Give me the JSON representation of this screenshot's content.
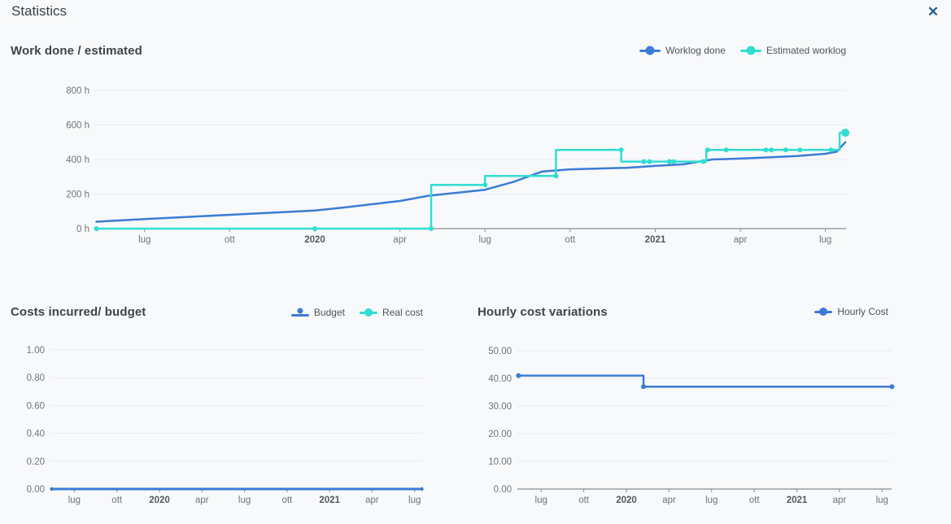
{
  "dialog": {
    "title": "Statistics",
    "close_icon": "✕"
  },
  "colors": {
    "blue": "#3a7cd6",
    "cyan": "#31ddd2",
    "grid": "#e7ebf2",
    "axis": "#888d94",
    "tick_label": "#6f747b",
    "tick_label_bold": "#54585e",
    "close": "#275e92"
  },
  "chart_data": [
    {
      "id": "work-done-estimated",
      "type": "line",
      "title": "Work done / estimated",
      "legend": [
        {
          "label": "Worklog done",
          "color": "blue",
          "marker": "dot-line"
        },
        {
          "label": "Estimated worklog",
          "color": "cyan",
          "marker": "dot-line"
        }
      ],
      "x_axis": {
        "note_unit": "months (0 = Jan 2019)",
        "ticks": [
          {
            "m": 6,
            "label": "lug"
          },
          {
            "m": 9,
            "label": "ott"
          },
          {
            "m": 12,
            "label": "2020",
            "bold": true
          },
          {
            "m": 15,
            "label": "apr"
          },
          {
            "m": 18,
            "label": "lug"
          },
          {
            "m": 21,
            "label": "ott"
          },
          {
            "m": 24,
            "label": "2021",
            "bold": true
          },
          {
            "m": 27,
            "label": "apr"
          },
          {
            "m": 30,
            "label": "lug"
          }
        ]
      },
      "y_axis": {
        "unit": "h",
        "range": [
          0,
          800
        ],
        "ticks": [
          {
            "v": 0,
            "label": "0 h"
          },
          {
            "v": 200,
            "label": "200 h"
          },
          {
            "v": 400,
            "label": "400 h"
          },
          {
            "v": 600,
            "label": "600 h"
          },
          {
            "v": 800,
            "label": "800 h"
          }
        ]
      },
      "series": [
        {
          "name": "Worklog done",
          "color": "blue",
          "width": 2.5,
          "points": [
            [
              4.3,
              40
            ],
            [
              6,
              55
            ],
            [
              9,
              80
            ],
            [
              12,
              105
            ],
            [
              13,
              122
            ],
            [
              15,
              160
            ],
            [
              16,
              190
            ],
            [
              18,
              225
            ],
            [
              19,
              270
            ],
            [
              20,
              330
            ],
            [
              21,
              343
            ],
            [
              23,
              352
            ],
            [
              24,
              363
            ],
            [
              25,
              372
            ],
            [
              26,
              400
            ],
            [
              27,
              405
            ],
            [
              28,
              412
            ],
            [
              29,
              420
            ],
            [
              30,
              433
            ],
            [
              30.4,
              445
            ],
            [
              30.7,
              500
            ]
          ],
          "markers": []
        },
        {
          "name": "Estimated worklog",
          "color": "cyan",
          "width": 2.5,
          "points": [
            [
              4.3,
              0
            ],
            [
              16.1,
              0
            ],
            [
              16.1,
              253
            ],
            [
              18,
              253
            ],
            [
              18,
              305
            ],
            [
              20.5,
              305
            ],
            [
              20.5,
              455
            ],
            [
              22.8,
              455
            ],
            [
              22.8,
              388
            ],
            [
              25.8,
              388
            ],
            [
              25.8,
              455
            ],
            [
              30.5,
              455
            ],
            [
              30.5,
              555
            ],
            [
              30.7,
              555
            ]
          ],
          "markers": [
            [
              4.3,
              0
            ],
            [
              12,
              0
            ],
            [
              16.1,
              0
            ],
            [
              18,
              253
            ],
            [
              20.5,
              305
            ],
            [
              22.8,
              455
            ],
            [
              23.6,
              388
            ],
            [
              23.8,
              388
            ],
            [
              24.5,
              388
            ],
            [
              24.65,
              388
            ],
            [
              25.7,
              388
            ],
            [
              25.85,
              455
            ],
            [
              26.5,
              455
            ],
            [
              27.9,
              455
            ],
            [
              28.1,
              455
            ],
            [
              28.6,
              455
            ],
            [
              29.1,
              455
            ],
            [
              30.2,
              455
            ],
            [
              30.7,
              555,
              5
            ]
          ]
        }
      ]
    },
    {
      "id": "costs-incurred-budget",
      "type": "line",
      "title": "Costs incurred/ budget",
      "legend": [
        {
          "label": "Budget",
          "color": "blue",
          "marker": "dot-above-line"
        },
        {
          "label": "Real cost",
          "color": "cyan",
          "marker": "dot-line"
        }
      ],
      "x_axis": {
        "ticks": [
          {
            "m": 6,
            "label": "lug"
          },
          {
            "m": 9,
            "label": "ott"
          },
          {
            "m": 12,
            "label": "2020",
            "bold": true
          },
          {
            "m": 15,
            "label": "apr"
          },
          {
            "m": 18,
            "label": "lug"
          },
          {
            "m": 21,
            "label": "ott"
          },
          {
            "m": 24,
            "label": "2021",
            "bold": true
          },
          {
            "m": 27,
            "label": "apr"
          },
          {
            "m": 30,
            "label": "lug"
          }
        ]
      },
      "y_axis": {
        "unit": "",
        "range": [
          0,
          1
        ],
        "ticks": [
          {
            "v": 0,
            "label": "0.00"
          },
          {
            "v": 0.2,
            "label": "0.20"
          },
          {
            "v": 0.4,
            "label": "0.40"
          },
          {
            "v": 0.6,
            "label": "0.60"
          },
          {
            "v": 0.8,
            "label": "0.80"
          },
          {
            "v": 1,
            "label": "1.00"
          }
        ]
      },
      "series": [
        {
          "name": "Budget",
          "color": "blue",
          "width": 3,
          "points": [
            [
              4.4,
              0
            ],
            [
              30.5,
              0
            ]
          ],
          "markers": [
            [
              4.4,
              0,
              2.2
            ],
            [
              30.5,
              0,
              2.2
            ]
          ]
        },
        {
          "name": "Real cost",
          "color": "cyan",
          "width": 2.5,
          "points": [],
          "markers": []
        }
      ]
    },
    {
      "id": "hourly-cost-variations",
      "type": "line",
      "title": "Hourly cost variations",
      "legend": [
        {
          "label": "Hourly Cost",
          "color": "blue",
          "marker": "dot-line"
        }
      ],
      "x_axis": {
        "ticks": [
          {
            "m": 6,
            "label": "lug"
          },
          {
            "m": 9,
            "label": "ott"
          },
          {
            "m": 12,
            "label": "2020",
            "bold": true
          },
          {
            "m": 15,
            "label": "apr"
          },
          {
            "m": 18,
            "label": "lug"
          },
          {
            "m": 21,
            "label": "ott"
          },
          {
            "m": 24,
            "label": "2021",
            "bold": true
          },
          {
            "m": 27,
            "label": "apr"
          },
          {
            "m": 30,
            "label": "lug"
          }
        ]
      },
      "y_axis": {
        "unit": "",
        "range": [
          0,
          50
        ],
        "ticks": [
          {
            "v": 0,
            "label": "0.00"
          },
          {
            "v": 10,
            "label": "10.00"
          },
          {
            "v": 20,
            "label": "20.00"
          },
          {
            "v": 30,
            "label": "30.00"
          },
          {
            "v": 40,
            "label": "40.00"
          },
          {
            "v": 50,
            "label": "50.00"
          }
        ]
      },
      "series": [
        {
          "name": "Hourly Cost",
          "color": "blue",
          "width": 2.5,
          "points": [
            [
              4.4,
              41
            ],
            [
              13.2,
              41
            ],
            [
              13.2,
              37
            ],
            [
              30.7,
              37
            ]
          ],
          "markers": [
            [
              4.4,
              41
            ],
            [
              13.2,
              37
            ],
            [
              30.7,
              37
            ]
          ]
        }
      ]
    }
  ]
}
